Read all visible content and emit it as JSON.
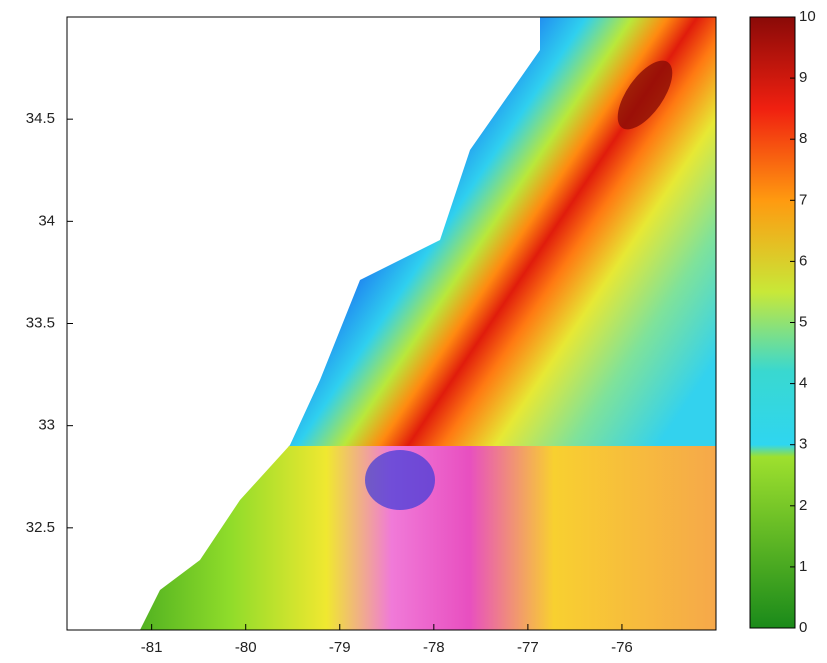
{
  "chart_data": {
    "type": "heatmap",
    "xlim": [
      -81.9,
      -75
    ],
    "xticks": [
      -81,
      -80,
      -79,
      -78,
      -77,
      -76
    ],
    "ylim": [
      32,
      35
    ],
    "yticks": [
      32.5,
      33,
      33.5,
      34,
      34.5
    ],
    "colorbar": {
      "lim": [
        0,
        10
      ],
      "ticks": [
        0,
        1,
        2,
        3,
        4,
        5,
        6,
        7,
        8,
        9,
        10
      ]
    }
  }
}
